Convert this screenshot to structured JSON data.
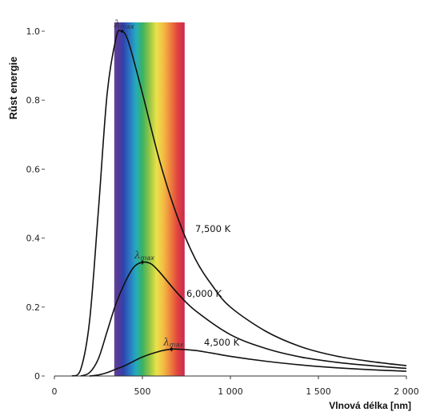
{
  "chart_data": {
    "type": "line",
    "title": "",
    "ylabel": "Růst energie",
    "xlabel": "Vlnová délka [nm]",
    "xlim": [
      0,
      2000
    ],
    "ylim": [
      0,
      1.0
    ],
    "x_ticks": [
      {
        "value": 0,
        "label": "0"
      },
      {
        "value": 500,
        "label": "500"
      },
      {
        "value": 1000,
        "label": "1 000"
      },
      {
        "value": 1500,
        "label": "1 500"
      },
      {
        "value": 2000,
        "label": "2 000"
      }
    ],
    "y_ticks": [
      {
        "value": 0,
        "label": "0"
      },
      {
        "value": 0.2,
        "label": "0.2"
      },
      {
        "value": 0.4,
        "label": "0.4"
      },
      {
        "value": 0.6,
        "label": "0.6"
      },
      {
        "value": 0.8,
        "label": "0.8"
      },
      {
        "value": 1.0,
        "label": "1.0"
      }
    ],
    "visible_spectrum_band_nm": [
      340,
      740
    ],
    "peak_marker_symbol": "λ",
    "peak_marker_subscript": "max",
    "series": [
      {
        "name": "7,500 K",
        "x": [
          100,
          150,
          200,
          250,
          300,
          350,
          380,
          420,
          500,
          600,
          700,
          800,
          900,
          1000,
          1200,
          1400,
          1600,
          1800,
          2000
        ],
        "y": [
          0.0,
          0.02,
          0.16,
          0.48,
          0.82,
          0.98,
          1.0,
          0.97,
          0.82,
          0.62,
          0.46,
          0.34,
          0.26,
          0.2,
          0.13,
          0.085,
          0.058,
          0.042,
          0.03
        ],
        "peak": {
          "x": 385,
          "y": 1.0
        }
      },
      {
        "name": "6,000 K",
        "x": [
          150,
          200,
          250,
          300,
          350,
          400,
          450,
          500,
          550,
          600,
          700,
          800,
          1000,
          1200,
          1400,
          1600,
          1800,
          2000
        ],
        "y": [
          0.0,
          0.01,
          0.05,
          0.13,
          0.21,
          0.27,
          0.315,
          0.33,
          0.325,
          0.3,
          0.24,
          0.19,
          0.12,
          0.08,
          0.055,
          0.04,
          0.03,
          0.022
        ],
        "peak": {
          "x": 500,
          "y": 0.33
        }
      },
      {
        "name": "4,500 K",
        "x": [
          200,
          250,
          300,
          350,
          400,
          500,
          600,
          650,
          700,
          800,
          900,
          1000,
          1200,
          1400,
          1600,
          1800,
          2000
        ],
        "y": [
          0.0,
          0.003,
          0.01,
          0.02,
          0.03,
          0.055,
          0.072,
          0.077,
          0.078,
          0.074,
          0.066,
          0.057,
          0.043,
          0.032,
          0.024,
          0.018,
          0.014
        ],
        "peak": {
          "x": 665,
          "y": 0.078
        }
      }
    ]
  }
}
